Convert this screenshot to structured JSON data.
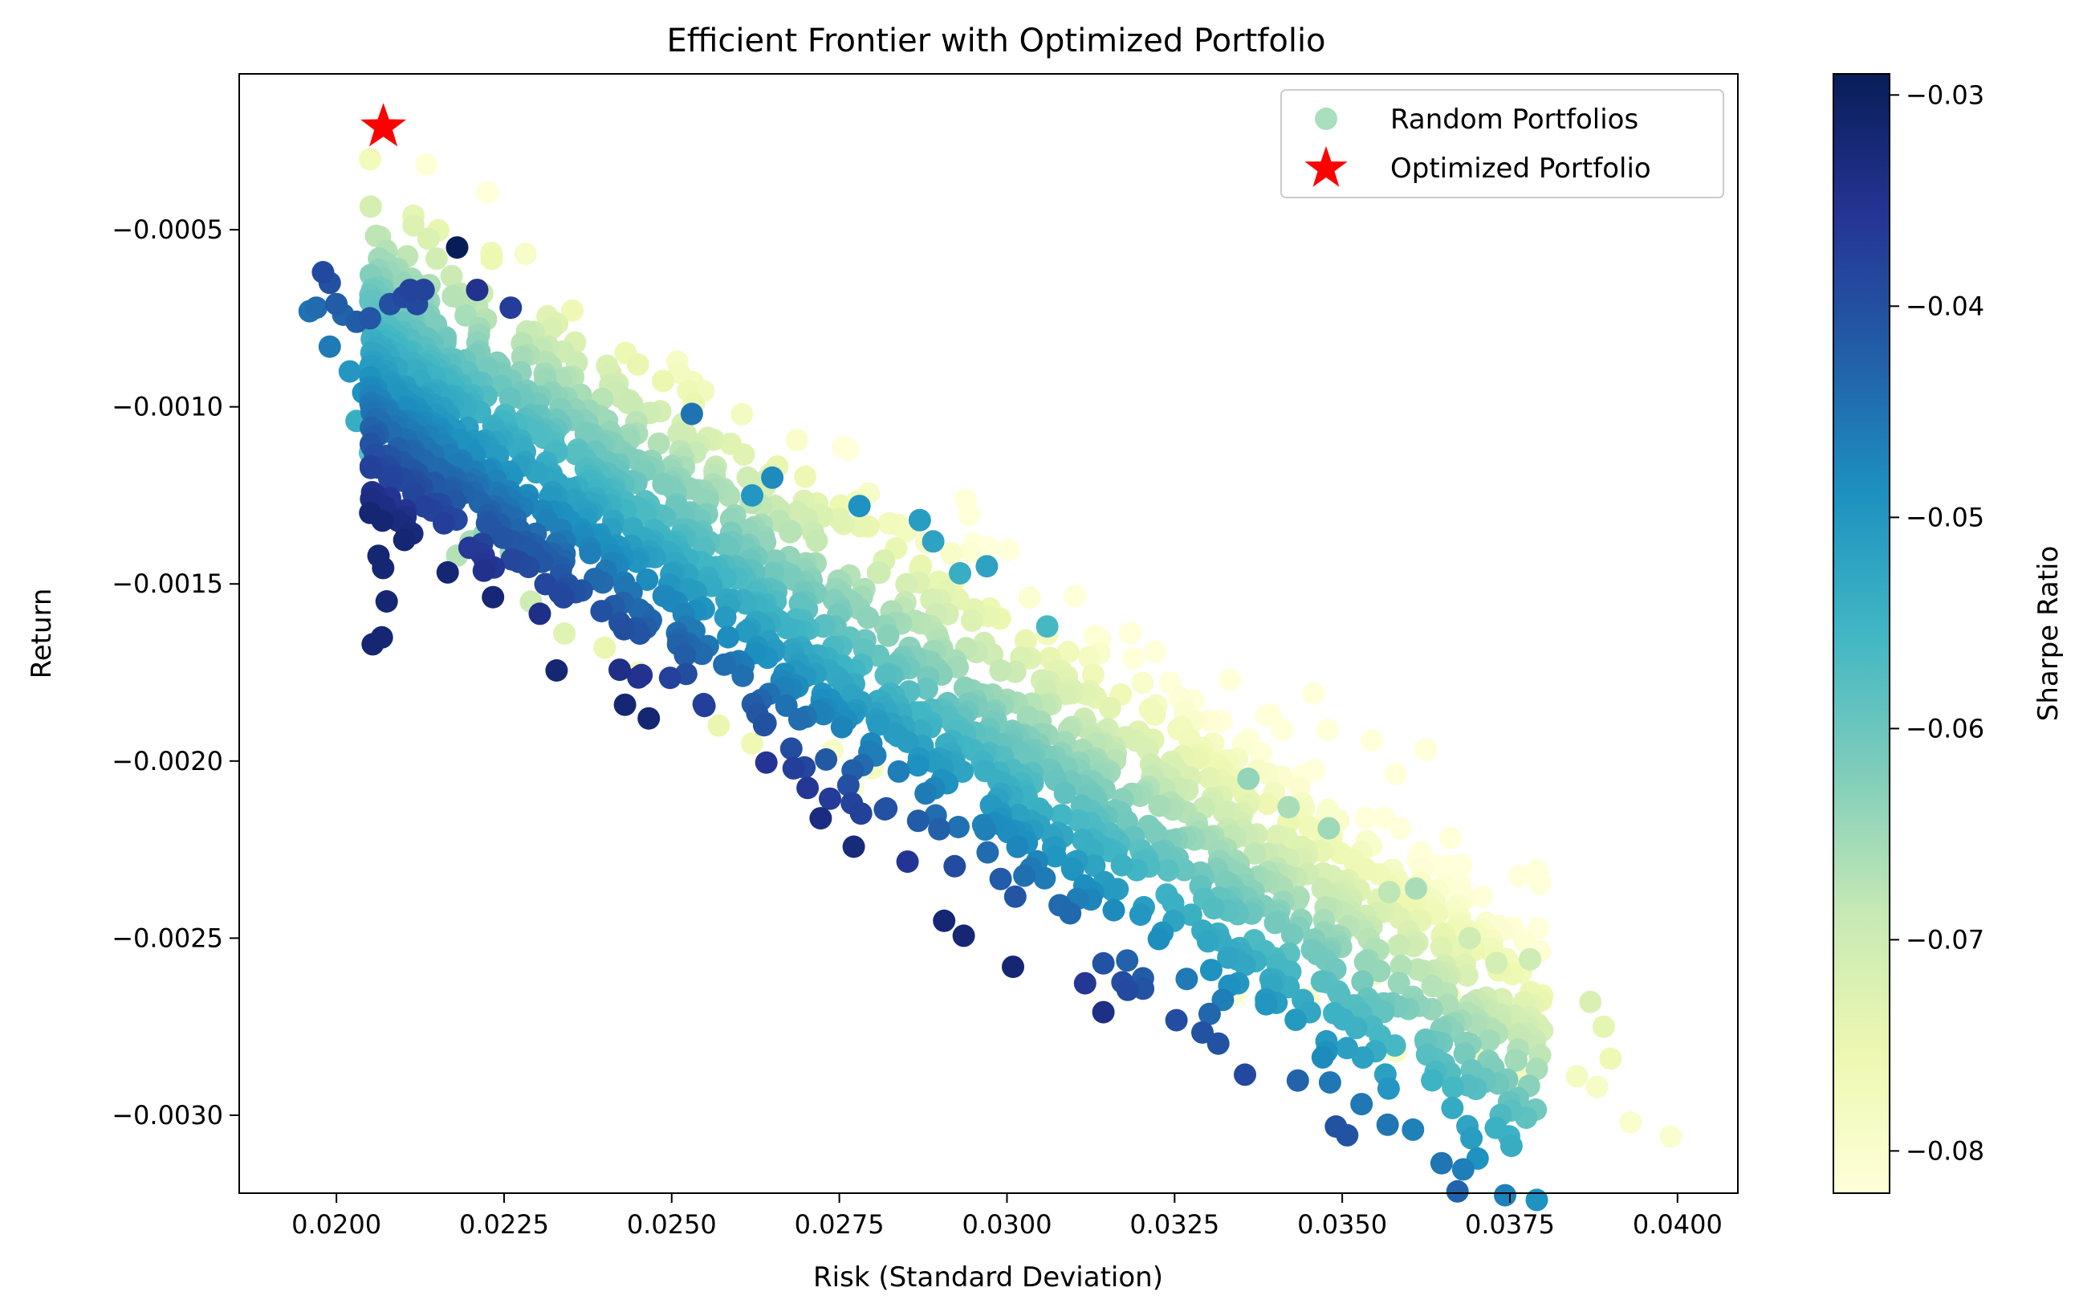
{
  "chart_data": {
    "type": "scatter",
    "title": "Efficient Frontier with Optimized Portfolio",
    "xlabel": "Risk (Standard Deviation)",
    "ylabel": "Return",
    "xlim": [
      0.01855,
      0.0409
    ],
    "ylim": [
      -0.00322,
      -6e-05
    ],
    "x_ticks": [
      0.02,
      0.0225,
      0.025,
      0.0275,
      0.03,
      0.0325,
      0.035,
      0.0375,
      0.04
    ],
    "x_tick_labels": [
      "0.0200",
      "0.0225",
      "0.0250",
      "0.0275",
      "0.0300",
      "0.0325",
      "0.0350",
      "0.0375",
      "0.0400"
    ],
    "y_ticks": [
      -0.0005,
      -0.001,
      -0.0015,
      -0.002,
      -0.0025,
      -0.003
    ],
    "y_tick_labels": [
      "−0.0005",
      "−0.0010",
      "−0.0015",
      "−0.0020",
      "−0.0025",
      "−0.0030"
    ],
    "grid": false,
    "legend_position": "top-right",
    "colorbar": {
      "label": "Sharpe Ratio",
      "range": [
        -0.082,
        -0.029
      ],
      "ticks": [
        -0.03,
        -0.04,
        -0.05,
        -0.06,
        -0.07,
        -0.08
      ],
      "tick_labels": [
        "−0.03",
        "−0.04",
        "−0.05",
        "−0.06",
        "−0.07",
        "−0.08"
      ],
      "colormap": "YlGnBu",
      "stops": [
        "#ffffd9",
        "#edf8b1",
        "#c7e9b4",
        "#7fcdbb",
        "#41b6c4",
        "#1d91c0",
        "#225ea8",
        "#253494",
        "#081d58"
      ]
    },
    "series": [
      {
        "name": "Random Portfolios",
        "marker": "circle",
        "legend_color": "#a9dfbc",
        "points": [
          [
            0.0196,
            -0.00073
          ],
          [
            0.0197,
            -0.00072
          ],
          [
            0.0198,
            -0.00062
          ],
          [
            0.0199,
            -0.00065
          ],
          [
            0.02,
            -0.00071
          ],
          [
            0.0201,
            -0.00074
          ],
          [
            0.0203,
            -0.00076
          ],
          [
            0.0205,
            -0.00075
          ],
          [
            0.0208,
            -0.00071
          ],
          [
            0.021,
            -0.00069
          ],
          [
            0.0211,
            -0.00067
          ],
          [
            0.0212,
            -0.00071
          ],
          [
            0.0213,
            -0.00067
          ],
          [
            0.0218,
            -0.00055
          ],
          [
            0.0221,
            -0.00067
          ],
          [
            0.0226,
            -0.00072
          ],
          [
            0.0199,
            -0.00083
          ],
          [
            0.0202,
            -0.0009
          ],
          [
            0.0203,
            -0.00104
          ],
          [
            0.0205,
            -0.00113
          ],
          [
            0.0204,
            -0.00096
          ],
          [
            0.0211,
            -0.00118
          ],
          [
            0.0212,
            -0.00127
          ],
          [
            0.0216,
            -0.00124
          ],
          [
            0.0218,
            -0.00142
          ],
          [
            0.022,
            -0.00138
          ],
          [
            0.0222,
            -0.00136
          ],
          [
            0.0226,
            -0.00141
          ],
          [
            0.0229,
            -0.00155
          ],
          [
            0.0234,
            -0.00164
          ],
          [
            0.024,
            -0.00168
          ],
          [
            0.0245,
            -0.00175
          ],
          [
            0.0253,
            -0.00102
          ],
          [
            0.0262,
            -0.00125
          ],
          [
            0.0265,
            -0.0012
          ],
          [
            0.0278,
            -0.00128
          ],
          [
            0.0287,
            -0.00132
          ],
          [
            0.0289,
            -0.00138
          ],
          [
            0.0293,
            -0.00147
          ],
          [
            0.0297,
            -0.00145
          ],
          [
            0.0306,
            -0.00162
          ],
          [
            0.0274,
            -0.00197
          ],
          [
            0.0277,
            -0.00208
          ],
          [
            0.028,
            -0.00202
          ],
          [
            0.0262,
            -0.00195
          ],
          [
            0.0257,
            -0.0019
          ],
          [
            0.0336,
            -0.00205
          ],
          [
            0.0342,
            -0.00213
          ],
          [
            0.0348,
            -0.00219
          ],
          [
            0.0357,
            -0.00237
          ],
          [
            0.0361,
            -0.00236
          ],
          [
            0.0369,
            -0.0025
          ],
          [
            0.0373,
            -0.00257
          ],
          [
            0.0378,
            -0.00256
          ],
          [
            0.0387,
            -0.00268
          ],
          [
            0.0389,
            -0.00275
          ],
          [
            0.039,
            -0.00284
          ],
          [
            0.0385,
            -0.00289
          ],
          [
            0.0388,
            -0.00292
          ],
          [
            0.0393,
            -0.00302
          ],
          [
            0.0399,
            -0.00306
          ],
          [
            0.0358,
            -0.00282
          ],
          [
            0.0376,
            -0.00289
          ],
          [
            0.0371,
            -0.00282
          ],
          [
            0.0379,
            -0.00274
          ],
          [
            0.0334,
            -0.00266
          ],
          [
            0.0345,
            -0.00267
          ],
          [
            0.0355,
            -0.0026
          ],
          [
            0.0366,
            -0.00266
          ],
          [
            0.0309,
            -0.00242
          ]
        ],
        "sharpe": [
          -0.045,
          -0.044,
          -0.039,
          -0.04,
          -0.042,
          -0.043,
          -0.042,
          -0.041,
          -0.04,
          -0.039,
          -0.038,
          -0.039,
          -0.038,
          -0.029,
          -0.035,
          -0.037,
          -0.046,
          -0.05,
          -0.054,
          -0.058,
          -0.049,
          -0.06,
          -0.063,
          -0.06,
          -0.067,
          -0.066,
          -0.064,
          -0.065,
          -0.07,
          -0.073,
          -0.075,
          -0.076,
          -0.045,
          -0.05,
          -0.048,
          -0.049,
          -0.051,
          -0.052,
          -0.054,
          -0.052,
          -0.056,
          -0.079,
          -0.08,
          -0.078,
          -0.076,
          -0.075,
          -0.064,
          -0.066,
          -0.065,
          -0.068,
          -0.066,
          -0.07,
          -0.071,
          -0.07,
          -0.072,
          -0.074,
          -0.076,
          -0.078,
          -0.079,
          -0.08,
          -0.08,
          -0.079,
          -0.077,
          -0.076,
          -0.075,
          -0.081,
          -0.08,
          -0.077,
          -0.078,
          -0.08
        ],
        "band": {
          "count": 1900,
          "note_excluded": true
        }
      },
      {
        "name": "Optimized Portfolio",
        "marker": "star",
        "color": "#ff0000",
        "points": [
          [
            0.0207,
            -0.00021
          ]
        ]
      }
    ]
  }
}
